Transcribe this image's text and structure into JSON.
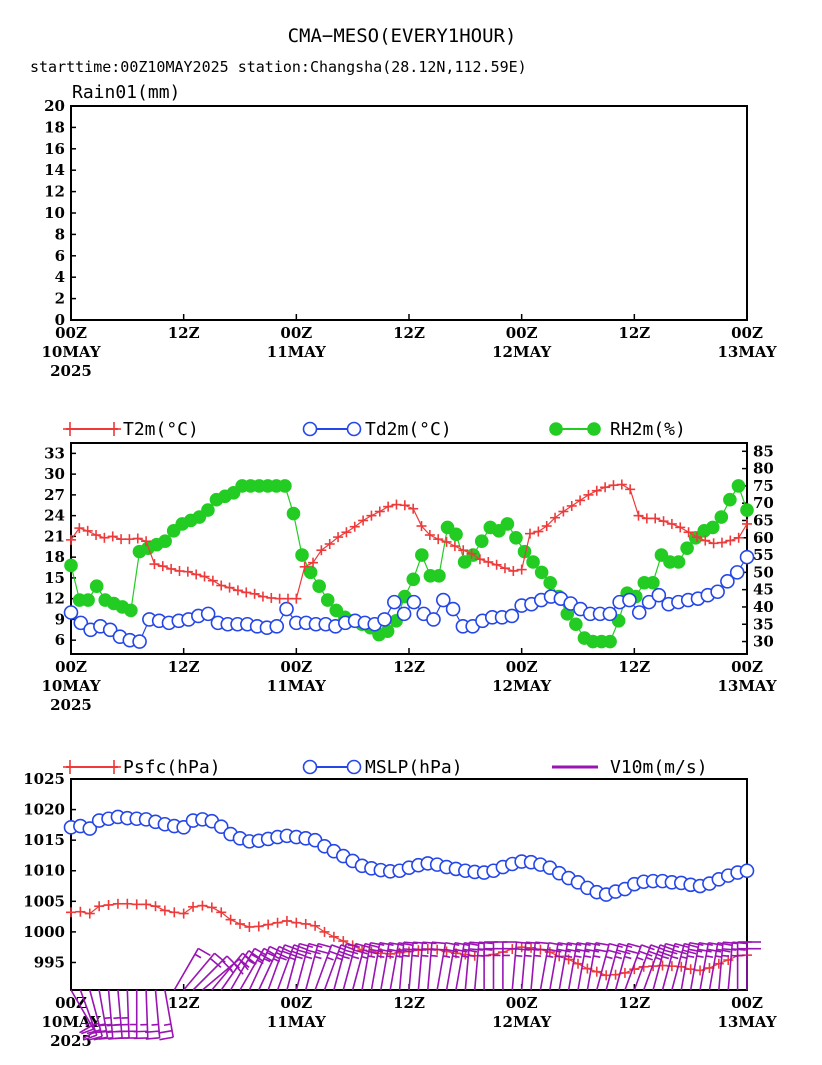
{
  "header": {
    "title": "CMA−MESO(EVERY1HOUR)",
    "subtitle": "starttime:00Z10MAY2025   station:Changsha(28.12N,112.59E)"
  },
  "colors": {
    "t2m": "#ee3a3a",
    "td2m": "#2546e8",
    "rh2m": "#22cc22",
    "psfc": "#ee3a3a",
    "mslp": "#2546e8",
    "wind": "#9a14b4"
  },
  "x_axis": {
    "ticks": [
      {
        "top": "00Z",
        "mid": "10MAY",
        "bot": "2025"
      },
      {
        "top": "12Z",
        "mid": "",
        "bot": ""
      },
      {
        "top": "00Z",
        "mid": "11MAY",
        "bot": ""
      },
      {
        "top": "12Z",
        "mid": "",
        "bot": ""
      },
      {
        "top": "00Z",
        "mid": "12MAY",
        "bot": ""
      },
      {
        "top": "12Z",
        "mid": "",
        "bot": ""
      },
      {
        "top": "00Z",
        "mid": "13MAY",
        "bot": ""
      }
    ]
  },
  "chart_data": [
    {
      "type": "bar",
      "title": "Rain01(mm)",
      "y_ticks": [
        "0",
        "2",
        "4",
        "6",
        "8",
        "10",
        "12",
        "14",
        "16",
        "18",
        "20"
      ],
      "ylim": [
        0,
        20
      ],
      "xlim_hours": [
        0,
        72
      ],
      "series": [
        {
          "name": "Rain01(mm)",
          "values": []
        }
      ]
    },
    {
      "type": "line",
      "xlim_hours": [
        0,
        72
      ],
      "legend": [
        "T2m(°C)",
        "Td2m(°C)",
        "RH2m(%)"
      ],
      "y_left_ticks": [
        "6",
        "9",
        "12",
        "15",
        "18",
        "21",
        "24",
        "27",
        "30",
        "33"
      ],
      "y_left_lim": [
        4,
        34.5
      ],
      "y_right_ticks": [
        "30",
        "35",
        "40",
        "45",
        "50",
        "55",
        "60",
        "65",
        "70",
        "75",
        "80",
        "85"
      ],
      "y_right_lim": [
        26.4,
        87.4
      ],
      "series": [
        {
          "name": "T2m(°C)",
          "axis": "left",
          "values": [
            20.5,
            22.2,
            21.8,
            21.2,
            20.8,
            21.0,
            20.6,
            20.6,
            20.7,
            20.3,
            17.0,
            16.7,
            16.3,
            16.0,
            15.9,
            15.5,
            15.2,
            14.6,
            13.9,
            13.6,
            13.2,
            12.9,
            12.7,
            12.3,
            12.1,
            12.0,
            12.0,
            12.0,
            16.6,
            17.2,
            19.0,
            19.9,
            20.9,
            21.6,
            22.4,
            23.3,
            24.0,
            24.6,
            25.3,
            25.6,
            25.5,
            25.0,
            22.5,
            21.2,
            20.6,
            20.2,
            19.6,
            19.0,
            18.5,
            17.7,
            17.3,
            16.9,
            16.4,
            16.0,
            16.2,
            21.4,
            21.7,
            22.5,
            23.7,
            24.6,
            25.4,
            26.2,
            27.0,
            27.6,
            28.1,
            28.4,
            28.5,
            27.8,
            24.0,
            23.6,
            23.6,
            23.2,
            22.8,
            22.3,
            21.6,
            20.9,
            20.4,
            20.0,
            20.1,
            20.4,
            20.8,
            22.8
          ]
        },
        {
          "name": "Td2m(°C)",
          "axis": "left",
          "values": [
            10.0,
            8.5,
            7.5,
            8.0,
            7.5,
            6.5,
            6.0,
            5.8,
            9.0,
            8.8,
            8.5,
            8.8,
            9.0,
            9.5,
            9.8,
            8.5,
            8.3,
            8.3,
            8.3,
            8.0,
            7.8,
            8.0,
            10.5,
            8.5,
            8.5,
            8.3,
            8.3,
            8.0,
            8.5,
            8.8,
            8.5,
            8.3,
            9.0,
            11.5,
            9.8,
            11.5,
            9.8,
            9.0,
            11.8,
            10.5,
            8.0,
            8.0,
            8.8,
            9.3,
            9.3,
            9.5,
            11.0,
            11.2,
            11.8,
            12.3,
            12.0,
            11.3,
            10.5,
            9.8,
            9.8,
            9.8,
            11.5,
            11.8,
            10.0,
            11.5,
            12.5,
            11.2,
            11.5,
            11.8,
            12.0,
            12.5,
            13.0,
            14.5,
            15.8,
            18.0
          ]
        },
        {
          "name": "RH2m(%)",
          "axis": "right",
          "values": [
            52,
            42,
            42,
            46,
            42,
            41,
            40,
            39,
            56,
            57,
            58,
            59,
            62,
            64,
            65,
            66,
            68,
            71,
            72,
            73,
            75,
            75,
            75,
            75,
            75,
            75,
            67,
            55,
            50,
            46,
            42,
            39,
            37,
            36,
            35,
            34,
            32,
            33,
            36,
            43,
            48,
            55,
            49,
            49,
            63,
            61,
            53,
            55,
            59,
            63,
            62,
            64,
            60,
            56,
            53,
            50,
            47,
            43,
            38,
            35,
            31,
            30,
            30,
            30,
            36,
            44,
            43,
            47,
            47,
            55,
            53,
            53,
            57,
            60,
            62,
            63,
            66,
            71,
            75,
            68
          ]
        }
      ]
    },
    {
      "type": "line",
      "xlim_hours": [
        0,
        72
      ],
      "legend": [
        "Psfc(hPa)",
        "MSLP(hPa)",
        "V10m(m/s)"
      ],
      "y_ticks": [
        "995",
        "1000",
        "1005",
        "1010",
        "1015",
        "1020",
        "1025"
      ],
      "ylim": [
        990.5,
        1025
      ],
      "series": [
        {
          "name": "Psfc(hPa)",
          "values": [
            1003.2,
            1003.3,
            1003.0,
            1004.2,
            1004.4,
            1004.6,
            1004.6,
            1004.5,
            1004.5,
            1004.2,
            1003.5,
            1003.2,
            1003.0,
            1004.1,
            1004.3,
            1004.0,
            1003.2,
            1002.0,
            1001.3,
            1000.8,
            1000.9,
            1001.2,
            1001.5,
            1001.8,
            1001.5,
            1001.3,
            1001.0,
            1000.0,
            999.2,
            998.5,
            997.8,
            997.0,
            996.8,
            996.5,
            996.4,
            996.6,
            996.8,
            997.0,
            997.2,
            997.1,
            996.8,
            996.5,
            996.3,
            996.1,
            996.1,
            996.3,
            996.7,
            997.2,
            997.5,
            997.4,
            997.1,
            996.7,
            996.0,
            995.5,
            994.8,
            994.0,
            993.5,
            992.9,
            993.0,
            993.3,
            993.9,
            994.3,
            994.4,
            994.5,
            994.4,
            994.3,
            993.9,
            993.7,
            994.1,
            994.8,
            995.4,
            996.1,
            996.2
          ]
        },
        {
          "name": "MSLP(hPa)",
          "values": [
            1017.1,
            1017.3,
            1016.9,
            1018.2,
            1018.5,
            1018.8,
            1018.6,
            1018.5,
            1018.4,
            1018.0,
            1017.6,
            1017.3,
            1017.1,
            1018.2,
            1018.4,
            1018.1,
            1017.2,
            1016.0,
            1015.3,
            1014.8,
            1014.9,
            1015.2,
            1015.5,
            1015.7,
            1015.5,
            1015.3,
            1015.0,
            1014.0,
            1013.2,
            1012.4,
            1011.6,
            1010.8,
            1010.4,
            1010.1,
            1009.9,
            1010.0,
            1010.5,
            1010.9,
            1011.2,
            1011.0,
            1010.6,
            1010.3,
            1010.0,
            1009.8,
            1009.7,
            1010.0,
            1010.6,
            1011.1,
            1011.5,
            1011.4,
            1011.0,
            1010.5,
            1009.6,
            1008.8,
            1008.1,
            1007.2,
            1006.5,
            1006.1,
            1006.6,
            1007.0,
            1007.8,
            1008.2,
            1008.3,
            1008.3,
            1008.1,
            1008.0,
            1007.7,
            1007.5,
            1007.9,
            1008.6,
            1009.2,
            1009.7,
            1010.0
          ]
        },
        {
          "name": "V10m(m/s)",
          "type": "wind_barbs",
          "direction_deg": [
            150,
            160,
            165,
            170,
            175,
            175,
            178,
            180,
            178,
            175,
            170,
            30,
            40,
            45,
            50,
            40,
            35,
            30,
            30,
            25,
            25,
            20,
            20,
            15,
            15,
            15,
            20,
            20,
            15,
            15,
            15,
            10,
            10,
            10,
            10,
            5,
            5,
            5,
            5,
            10,
            10,
            10,
            5,
            5,
            0,
            0,
            0,
            5,
            5,
            5,
            10,
            10,
            10,
            10,
            10,
            10,
            15,
            15,
            15,
            20,
            20,
            20,
            15,
            15,
            15,
            10,
            10,
            10,
            10,
            5,
            5,
            0,
            0
          ],
          "speed_ms": [
            4,
            5,
            6,
            6,
            7,
            7,
            7,
            6,
            6,
            6,
            5,
            3,
            4,
            4,
            5,
            5,
            5,
            5,
            6,
            6,
            6,
            6,
            6,
            6,
            6,
            5,
            5,
            5,
            5,
            5,
            5,
            5,
            5,
            5,
            5,
            5,
            5,
            5,
            5,
            5,
            5,
            6,
            6,
            6,
            6,
            6,
            6,
            5,
            5,
            5,
            5,
            5,
            5,
            5,
            5,
            5,
            5,
            5,
            6,
            6,
            6,
            6,
            6,
            6,
            6,
            5,
            5,
            5,
            5,
            5,
            5,
            5,
            4
          ]
        }
      ]
    }
  ]
}
